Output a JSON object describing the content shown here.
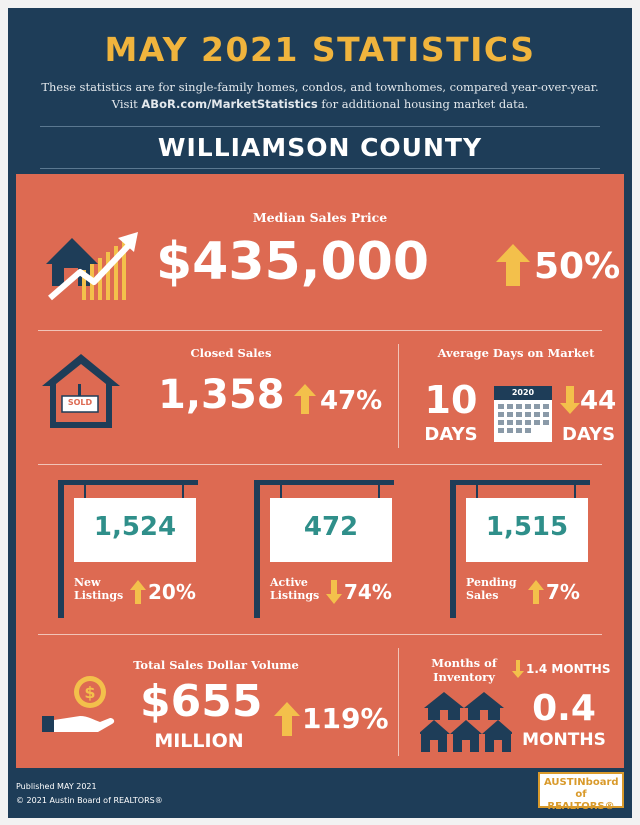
{
  "header": {
    "title": "MAY 2021 STATISTICS",
    "subtitle_line1": "These statistics are for single-family homes, condos, and townhomes, compared year-over-year.",
    "subtitle_prefix": "Visit ",
    "subtitle_link": "ABoR.com/MarketStatistics",
    "subtitle_suffix": " for additional housing market data.",
    "county": "WILLIAMSON COUNTY"
  },
  "median_sales_price": {
    "label": "Median Sales Price",
    "value": "$435,000",
    "change": "50%",
    "direction": "up"
  },
  "closed_sales": {
    "label": "Closed Sales",
    "value": "1,358",
    "change": "47%",
    "direction": "up",
    "sign_text": "SOLD"
  },
  "days_on_market": {
    "label": "Average Days on Market",
    "value": "10",
    "unit": "DAYS",
    "change": "44",
    "change_unit": "DAYS",
    "direction": "down",
    "calendar_year": "2020"
  },
  "listings": [
    {
      "value": "1,524",
      "label_line1": "New",
      "label_line2": "Listings",
      "change": "20%",
      "direction": "up"
    },
    {
      "value": "472",
      "label_line1": "Active",
      "label_line2": "Listings",
      "change": "74%",
      "direction": "down"
    },
    {
      "value": "1,515",
      "label_line1": "Pending",
      "label_line2": "Sales",
      "change": "7%",
      "direction": "up"
    }
  ],
  "dollar_volume": {
    "label": "Total Sales Dollar Volume",
    "value": "$655",
    "unit": "MILLION",
    "change": "119%",
    "direction": "up"
  },
  "inventory": {
    "label_line1": "Months of",
    "label_line2": "Inventory",
    "change": "1.4 MONTHS",
    "direction": "down",
    "value": "0.4",
    "unit": "MONTHS"
  },
  "footer": {
    "published": "Published MAY 2021",
    "copyright": "© 2021 Austin Board of REALTORS®",
    "logo_line1": "AUSTINboard",
    "logo_line2": "of REALTORS®"
  },
  "colors": {
    "navy": "#1e3d58",
    "coral": "#dd6a52",
    "gold": "#f3c04b",
    "teal": "#2f8f8a"
  }
}
